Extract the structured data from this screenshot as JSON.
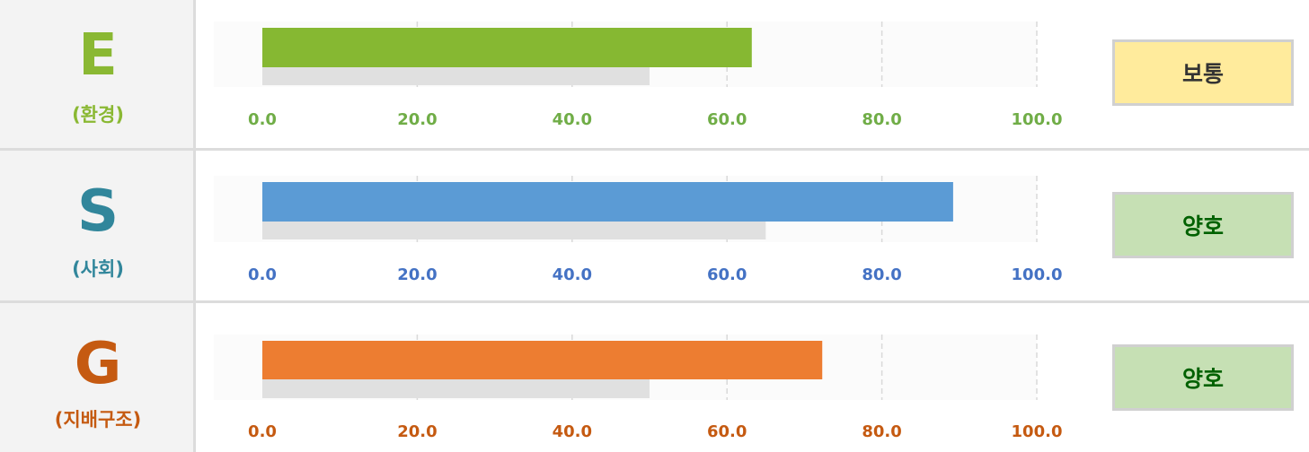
{
  "rows": [
    {
      "letter": "E",
      "sub": "(환경)",
      "color": "#8ab833",
      "bar_color": "#86b832",
      "badge": "보통",
      "badge_bg": "#ffeb9c",
      "badge_fg": "#333333"
    },
    {
      "letter": "S",
      "sub": "(사회)",
      "color": "#31869b",
      "bar_color": "#5b9bd5",
      "badge": "양호",
      "badge_bg": "#c6e0b4",
      "badge_fg": "#006100"
    },
    {
      "letter": "G",
      "sub": "(지배구조)",
      "color": "#c55a11",
      "bar_color": "#ed7d31",
      "badge": "양호",
      "badge_bg": "#c6e0b4",
      "badge_fg": "#006100"
    }
  ],
  "chart_data": [
    {
      "type": "bar",
      "orientation": "horizontal",
      "series": [
        {
          "values": [
            63.2
          ]
        },
        {
          "values": [
            50.0
          ]
        }
      ],
      "xlim": [
        0,
        100
      ],
      "ticks": [
        "0.0",
        "20.0",
        "40.0",
        "60.0",
        "80.0",
        "100.0"
      ],
      "tick_color": "#70ad47",
      "grid": true
    },
    {
      "type": "bar",
      "orientation": "horizontal",
      "series": [
        {
          "values": [
            89.2
          ]
        },
        {
          "values": [
            65.0
          ]
        }
      ],
      "xlim": [
        0,
        100
      ],
      "ticks": [
        "0.0",
        "20.0",
        "40.0",
        "60.0",
        "80.0",
        "100.0"
      ],
      "tick_color": "#4472c4",
      "grid": true
    },
    {
      "type": "bar",
      "orientation": "horizontal",
      "series": [
        {
          "values": [
            72.3
          ]
        },
        {
          "values": [
            50.0
          ]
        }
      ],
      "xlim": [
        0,
        100
      ],
      "ticks": [
        "0.0",
        "20.0",
        "40.0",
        "60.0",
        "80.0",
        "100.0"
      ],
      "tick_color": "#c55a11",
      "grid": true
    }
  ],
  "colors": {
    "benchmark_bar": "#e0e0e0",
    "gridline": "#d9d9d9"
  }
}
